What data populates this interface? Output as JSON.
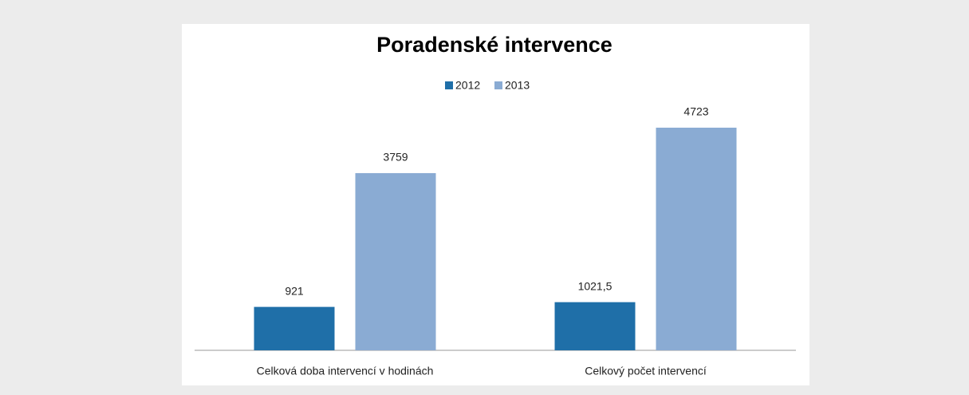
{
  "chart_data": {
    "type": "bar",
    "title": "Poradenské intervence",
    "categories": [
      "Celková doba intervencí v hodinách",
      "Celkový počet intervencí"
    ],
    "series": [
      {
        "name": "2012",
        "color": "#1f6fa8",
        "values": [
          921,
          1021.5
        ],
        "value_labels": [
          "921",
          "1021,5"
        ]
      },
      {
        "name": "2013",
        "color": "#8aabd3",
        "values": [
          3759,
          4723
        ]
      }
    ],
    "legend": "top"
  }
}
